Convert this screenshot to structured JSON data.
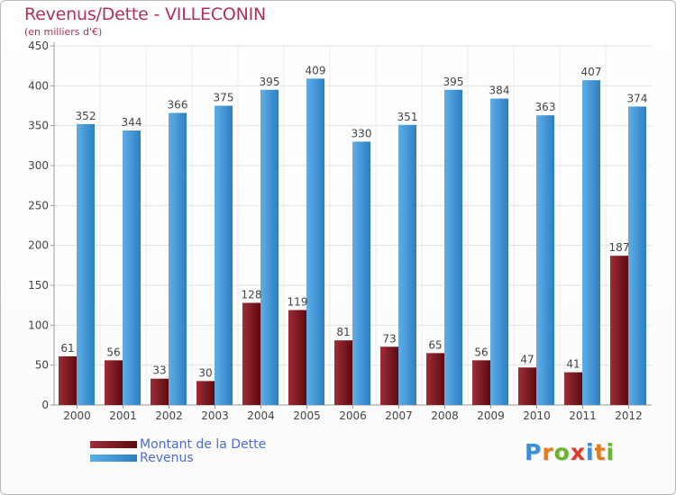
{
  "colors": {
    "title": "#b0305a",
    "dette_light": "#9e2d36",
    "dette_dark": "#5c0a10",
    "revenus_light": "#5eaee6",
    "revenus_dark": "#2d7fc3",
    "legend_text": "#4a6cd4"
  },
  "logo": {
    "text": "Proxiti",
    "letter_colors": [
      "#3a8fd8",
      "#e57a1f",
      "#6ab42d",
      "#e03a2f",
      "#3a8fd8",
      "#e57a1f",
      "#6ab42d"
    ]
  },
  "chart_data": {
    "type": "bar",
    "title": "Revenus/Dette - VILLECONIN",
    "subtitle": "(en milliers d'€)",
    "xlabel": "",
    "ylabel": "",
    "ylim": [
      0,
      450
    ],
    "yticks": [
      0,
      50,
      100,
      150,
      200,
      250,
      300,
      350,
      400,
      450
    ],
    "grid": true,
    "categories": [
      "2000",
      "2001",
      "2002",
      "2003",
      "2004",
      "2005",
      "2006",
      "2007",
      "2008",
      "2009",
      "2010",
      "2011",
      "2012"
    ],
    "series": [
      {
        "name": "Montant de la Dette",
        "key": "dette",
        "values": [
          61,
          56,
          33,
          30,
          128,
          119,
          81,
          73,
          65,
          56,
          47,
          41,
          187
        ]
      },
      {
        "name": "Revenus",
        "key": "revenus",
        "values": [
          352,
          344,
          366,
          375,
          395,
          409,
          330,
          351,
          395,
          384,
          363,
          407,
          374
        ]
      }
    ],
    "legend_position": "bottom-left"
  }
}
